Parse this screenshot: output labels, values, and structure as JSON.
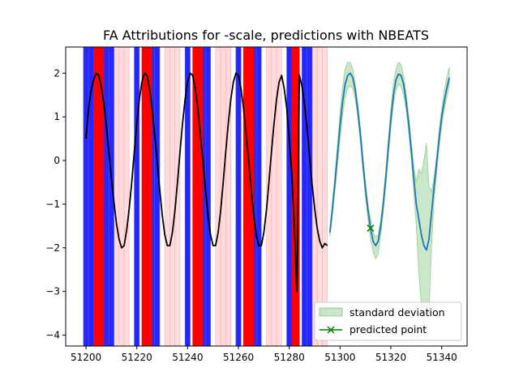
{
  "chart_data": {
    "type": "line",
    "title": "FA Attributions for -scale, predictions with NBEATS",
    "xlabel": "",
    "ylabel": "",
    "xlim": [
      51192,
      51350
    ],
    "ylim": [
      -4.25,
      2.6
    ],
    "x_ticks": [
      51200,
      51220,
      51240,
      51260,
      51280,
      51300,
      51320,
      51340
    ],
    "y_ticks": [
      2,
      1,
      0,
      -1,
      -2,
      -3,
      -4
    ],
    "grid": false,
    "legend_position": "lower-right",
    "legend": [
      {
        "label": "standard deviation",
        "marker": "patch",
        "color": "#2ca02c"
      },
      {
        "label": "predicted point",
        "marker": "x-line",
        "color": "#008000"
      }
    ],
    "attribution_bands": {
      "blue": [
        [
          51199,
          51201
        ],
        [
          51201,
          51203
        ],
        [
          51207,
          51209
        ],
        [
          51209,
          51211
        ],
        [
          51219,
          51221
        ],
        [
          51225,
          51227
        ],
        [
          51227,
          51229
        ],
        [
          51239,
          51241
        ],
        [
          51245,
          51247
        ],
        [
          51247,
          51249
        ],
        [
          51259,
          51261
        ],
        [
          51265,
          51267
        ],
        [
          51267,
          51269
        ],
        [
          51279,
          51281
        ],
        [
          51285,
          51287
        ],
        [
          51287,
          51289
        ]
      ],
      "red": [
        [
          51203,
          51207
        ],
        [
          51222,
          51226
        ],
        [
          51242,
          51246
        ],
        [
          51262,
          51266
        ],
        [
          51281,
          51284
        ]
      ],
      "pink": [
        [
          51211,
          51213
        ],
        [
          51213,
          51215
        ],
        [
          51215,
          51217
        ],
        [
          51231,
          51233
        ],
        [
          51233,
          51235
        ],
        [
          51235,
          51237
        ],
        [
          51251,
          51253
        ],
        [
          51253,
          51255
        ],
        [
          51255,
          51257
        ],
        [
          51271,
          51273
        ],
        [
          51273,
          51275
        ],
        [
          51275,
          51277
        ],
        [
          51289,
          51291
        ],
        [
          51291,
          51293
        ],
        [
          51293,
          51295
        ]
      ]
    },
    "series": [
      {
        "color": "#000000",
        "style": "history",
        "x": [
          51200,
          51201,
          51202,
          51203,
          51204,
          51205,
          51206,
          51207,
          51208,
          51209,
          51210,
          51211,
          51212,
          51213,
          51214,
          51215,
          51216,
          51217,
          51218,
          51219,
          51220,
          51221,
          51222,
          51223,
          51224,
          51225,
          51226,
          51227,
          51228,
          51229,
          51230,
          51231,
          51232,
          51233,
          51234,
          51235,
          51236,
          51237,
          51238,
          51239,
          51240,
          51241,
          51242,
          51243,
          51244,
          51245,
          51246,
          51247,
          51248,
          51249,
          51250,
          51251,
          51252,
          51253,
          51254,
          51255,
          51256,
          51257,
          51258,
          51259,
          51260,
          51261,
          51262,
          51263,
          51264,
          51265,
          51266,
          51267,
          51268,
          51269,
          51270,
          51271,
          51272,
          51273,
          51274,
          51275,
          51276,
          51277,
          51278,
          51279,
          51280,
          51281,
          51282,
          51283,
          51284,
          51285,
          51286,
          51287,
          51288,
          51289,
          51290,
          51291,
          51292,
          51293,
          51294,
          51295
        ],
        "values": [
          0.5,
          1.2,
          1.6,
          1.85,
          2.0,
          1.95,
          1.7,
          1.3,
          0.8,
          0.2,
          -0.4,
          -0.95,
          -1.45,
          -1.8,
          -2.0,
          -1.95,
          -1.6,
          -1.1,
          -0.5,
          0.2,
          0.85,
          1.4,
          1.8,
          2.0,
          1.95,
          1.65,
          1.2,
          0.6,
          0.0,
          -0.65,
          -1.25,
          -1.7,
          -1.95,
          -1.95,
          -1.65,
          -1.15,
          -0.5,
          0.2,
          0.85,
          1.4,
          1.8,
          2.0,
          1.95,
          1.65,
          1.2,
          0.6,
          0.0,
          -0.65,
          -1.25,
          -1.7,
          -1.95,
          -1.95,
          -1.65,
          -1.15,
          -0.5,
          0.2,
          0.85,
          1.4,
          1.8,
          2.0,
          1.95,
          1.65,
          1.2,
          0.6,
          0.0,
          -0.65,
          -1.25,
          -1.7,
          -1.95,
          -1.95,
          -1.65,
          -1.15,
          -0.5,
          0.2,
          0.85,
          1.4,
          1.8,
          1.95,
          1.65,
          1.2,
          0.5,
          -0.3,
          -1.5,
          -3.0,
          1.95,
          1.7,
          1.3,
          0.75,
          0.1,
          -0.55,
          -1.1,
          -1.55,
          -1.85,
          -2.0,
          -1.9,
          -1.95
        ]
      },
      {
        "color": "#1f77b4",
        "style": "prediction",
        "x": [
          51296,
          51297,
          51298,
          51299,
          51300,
          51301,
          51302,
          51303,
          51304,
          51305,
          51306,
          51307,
          51308,
          51309,
          51310,
          51311,
          51312,
          51313,
          51314,
          51315,
          51316,
          51317,
          51318,
          51319,
          51320,
          51321,
          51322,
          51323,
          51324,
          51325,
          51326,
          51327,
          51328,
          51329,
          51330,
          51331,
          51332,
          51333,
          51334,
          51335,
          51336,
          51337,
          51338,
          51339,
          51340,
          51341,
          51342,
          51343
        ],
        "values": [
          -1.65,
          -1.1,
          -0.5,
          0.15,
          0.8,
          1.35,
          1.75,
          1.95,
          2.0,
          1.9,
          1.6,
          1.15,
          0.6,
          -0.05,
          -0.65,
          -1.15,
          -1.55,
          -1.85,
          -1.95,
          -1.85,
          -1.5,
          -1.0,
          -0.4,
          0.3,
          0.95,
          1.5,
          1.85,
          1.98,
          1.95,
          1.75,
          1.35,
          0.85,
          0.25,
          -0.4,
          -1.0,
          -1.35,
          -1.7,
          -1.95,
          -2.05,
          -1.8,
          -1.2,
          -0.6,
          -0.05,
          0.5,
          1.0,
          1.35,
          1.65,
          1.9
        ]
      }
    ],
    "std_band": {
      "color": "#2ca02c",
      "x": [
        51296,
        51297,
        51298,
        51299,
        51300,
        51301,
        51302,
        51303,
        51304,
        51305,
        51306,
        51307,
        51308,
        51309,
        51310,
        51311,
        51312,
        51313,
        51314,
        51315,
        51316,
        51317,
        51318,
        51319,
        51320,
        51321,
        51322,
        51323,
        51324,
        51325,
        51326,
        51327,
        51328,
        51329,
        51330,
        51331,
        51332,
        51333,
        51334,
        51335,
        51336,
        51337,
        51338,
        51339,
        51340,
        51341,
        51342,
        51343
      ],
      "upper": [
        -1.55,
        -0.95,
        -0.3,
        0.4,
        1.1,
        1.7,
        2.1,
        2.25,
        2.25,
        2.1,
        1.75,
        1.3,
        0.75,
        0.1,
        -0.5,
        -1.0,
        -1.35,
        -1.65,
        -1.75,
        -1.7,
        -1.35,
        -0.85,
        -0.2,
        0.5,
        1.2,
        1.75,
        2.1,
        2.25,
        2.2,
        1.95,
        1.55,
        1.05,
        0.45,
        -0.1,
        -0.5,
        -0.2,
        -0.3,
        0.0,
        0.4,
        -0.6,
        -0.7,
        -0.4,
        0.1,
        0.7,
        1.2,
        1.6,
        1.9,
        2.15
      ],
      "lower": [
        -1.75,
        -1.25,
        -0.7,
        -0.1,
        0.5,
        1.05,
        1.45,
        1.65,
        1.7,
        1.65,
        1.4,
        0.95,
        0.4,
        -0.25,
        -0.85,
        -1.35,
        -1.8,
        -2.1,
        -2.25,
        -2.15,
        -1.7,
        -1.2,
        -0.6,
        0.1,
        0.75,
        1.3,
        1.6,
        1.75,
        1.7,
        1.5,
        1.15,
        0.65,
        0.05,
        -0.7,
        -1.5,
        -2.6,
        -3.3,
        -4.0,
        -4.0,
        -3.5,
        -2.0,
        -0.9,
        -0.3,
        0.3,
        0.8,
        1.15,
        1.45,
        1.7
      ]
    },
    "predicted_point": {
      "x": 51312,
      "y": -1.55,
      "color": "#008000"
    }
  }
}
